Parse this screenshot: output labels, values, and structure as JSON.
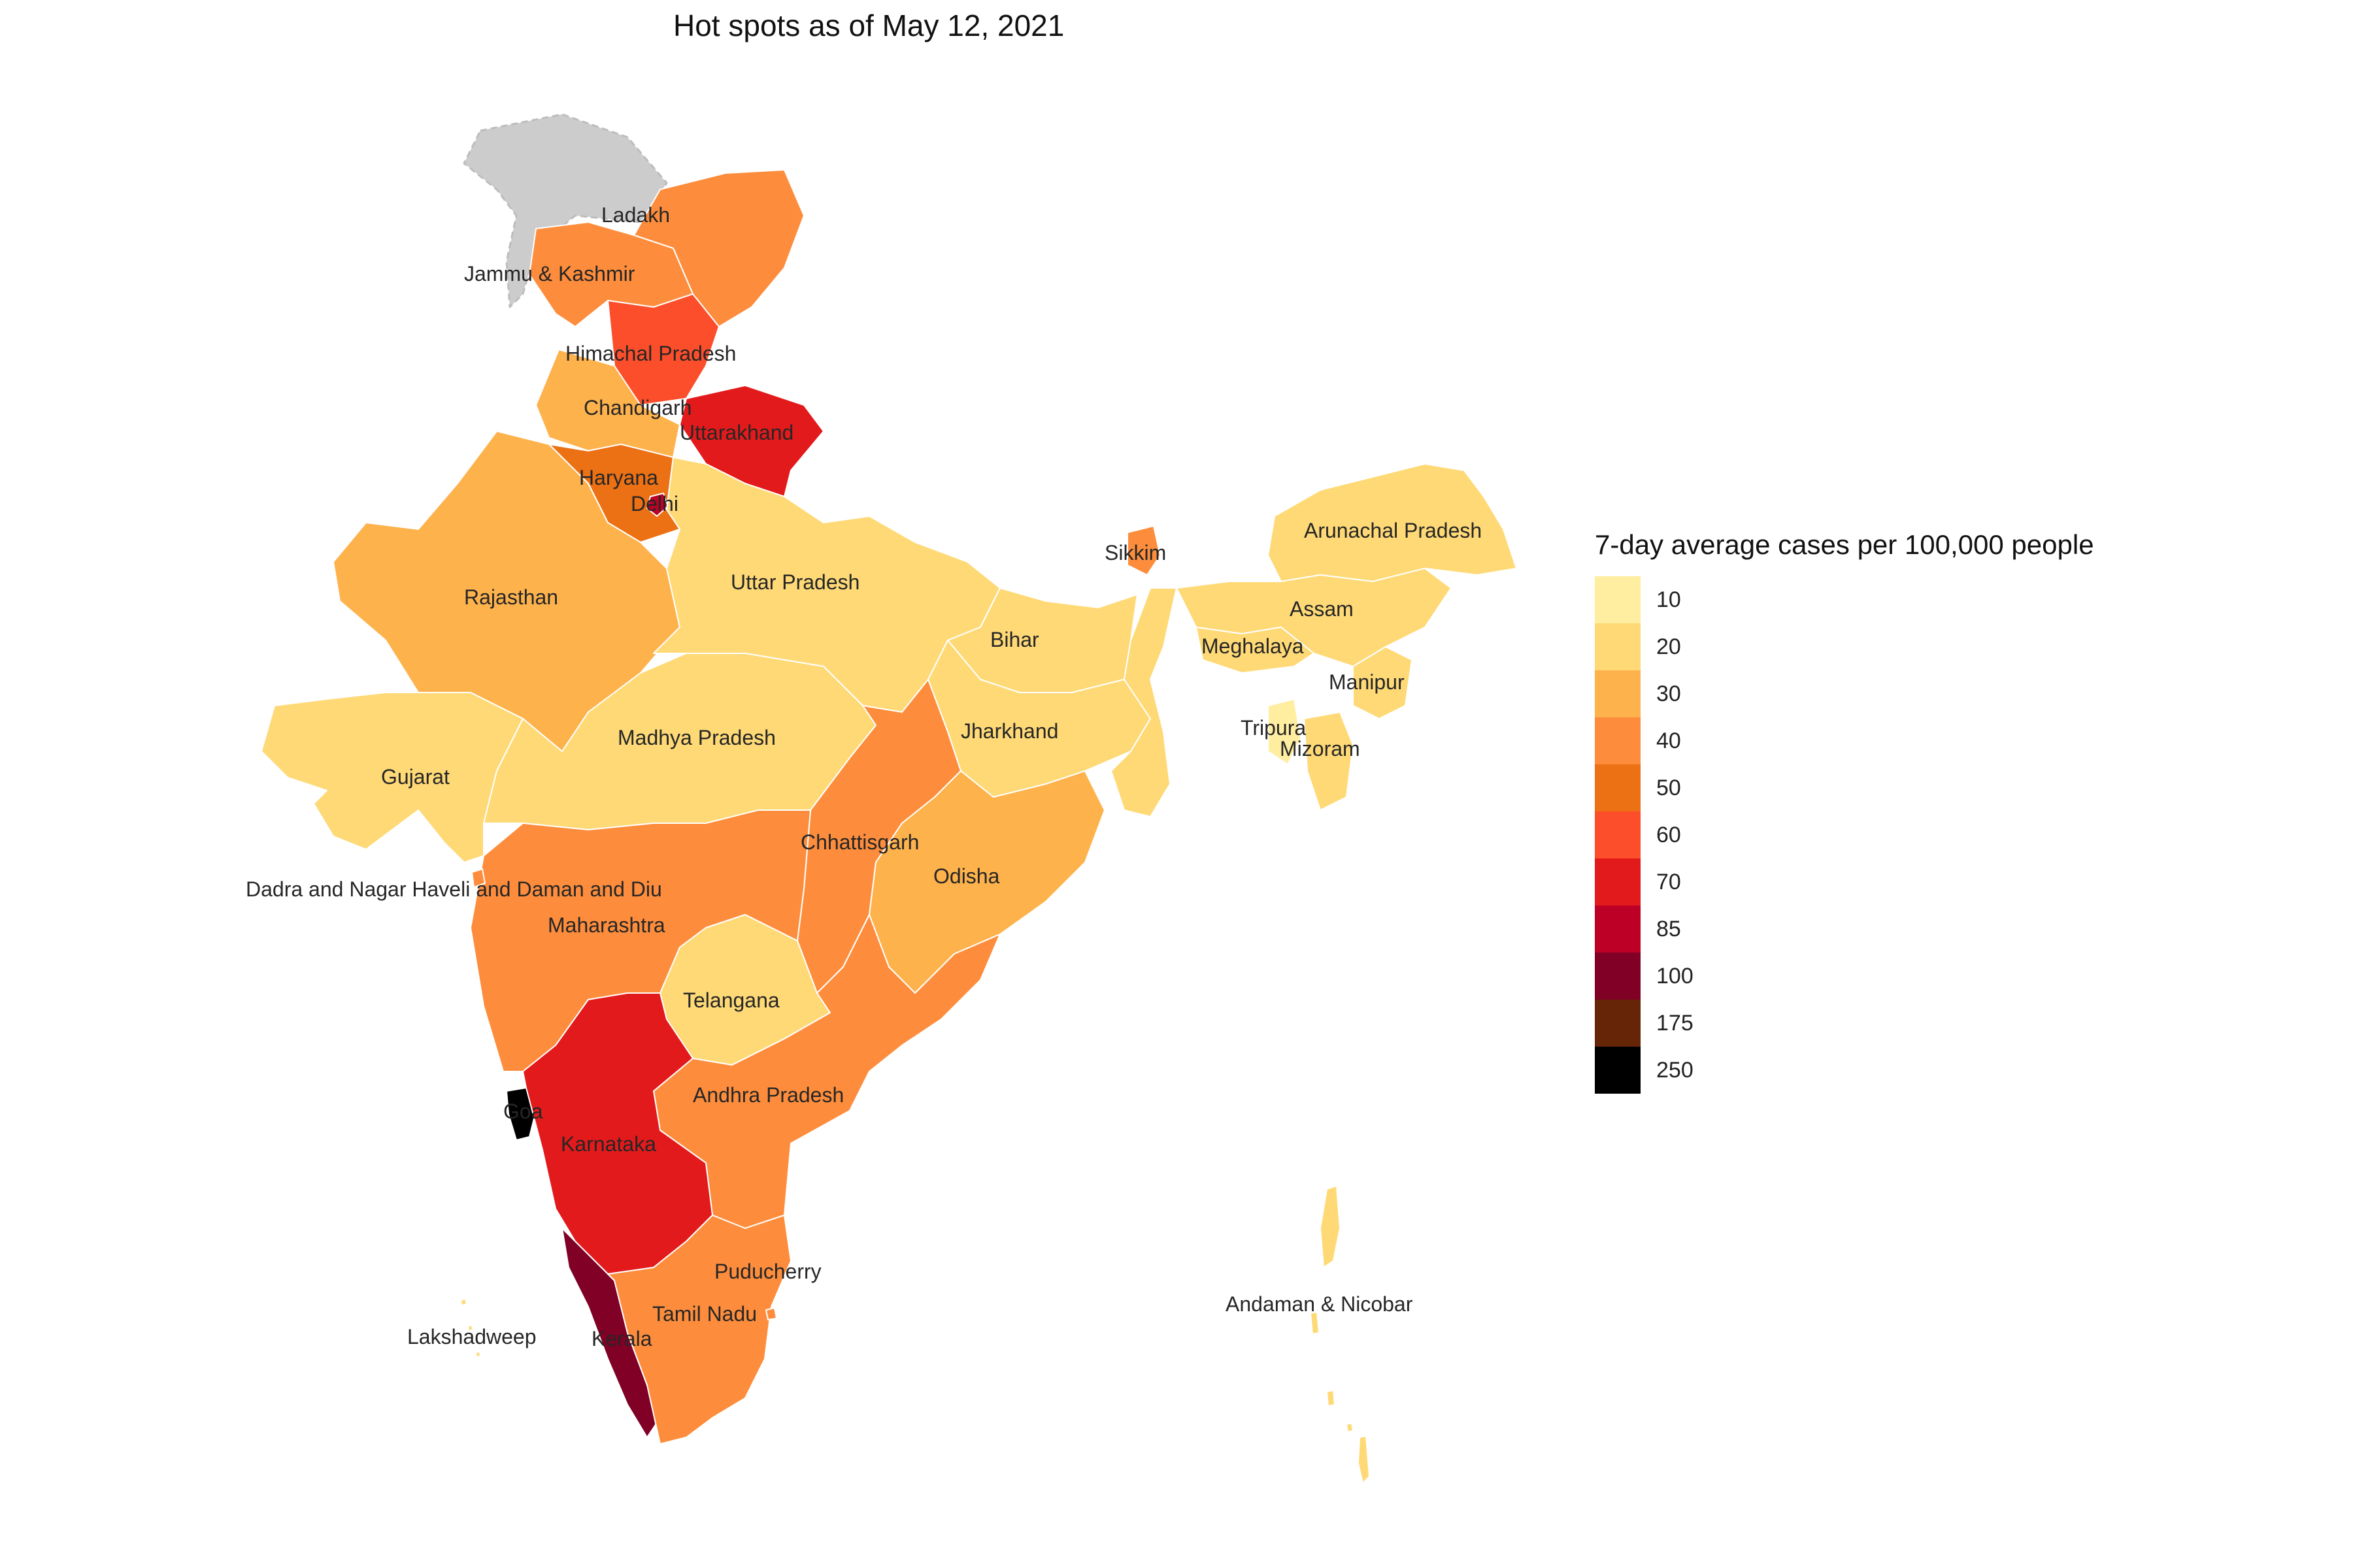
{
  "title": "Hot spots as of May 12, 2021",
  "legend": {
    "title": "7-day average cases per 100,000 people",
    "bins": [
      {
        "label": "10",
        "color": "#ffeda0"
      },
      {
        "label": "20",
        "color": "#fed976"
      },
      {
        "label": "30",
        "color": "#feb24c"
      },
      {
        "label": "40",
        "color": "#fd8d3c"
      },
      {
        "label": "50",
        "color": "#ec7014"
      },
      {
        "label": "60",
        "color": "#fc4e2a"
      },
      {
        "label": "70",
        "color": "#e31a1c"
      },
      {
        "label": "85",
        "color": "#bd0026"
      },
      {
        "label": "100",
        "color": "#800026"
      },
      {
        "label": "175",
        "color": "#662506"
      },
      {
        "label": "250",
        "color": "#000000"
      }
    ]
  },
  "regions": [
    {
      "name": "Ladakh",
      "bin": "40"
    },
    {
      "name": "Jammu & Kashmir",
      "bin": "40"
    },
    {
      "name": "Himachal Pradesh",
      "bin": "60"
    },
    {
      "name": "Chandigarh",
      "bin": "30"
    },
    {
      "name": "Uttarakhand",
      "bin": "70"
    },
    {
      "name": "Haryana",
      "bin": "50"
    },
    {
      "name": "Delhi",
      "bin": "85"
    },
    {
      "name": "Rajasthan",
      "bin": "30"
    },
    {
      "name": "Uttar Pradesh",
      "bin": "20"
    },
    {
      "name": "Bihar",
      "bin": "20"
    },
    {
      "name": "Sikkim",
      "bin": "40"
    },
    {
      "name": "Arunachal Pradesh",
      "bin": "20"
    },
    {
      "name": "Assam",
      "bin": "20"
    },
    {
      "name": "Meghalaya",
      "bin": "20"
    },
    {
      "name": "Manipur",
      "bin": "20"
    },
    {
      "name": "Tripura",
      "bin": "10"
    },
    {
      "name": "Mizoram",
      "bin": "20"
    },
    {
      "name": "Gujarat",
      "bin": "20"
    },
    {
      "name": "Madhya Pradesh",
      "bin": "20"
    },
    {
      "name": "Jharkhand",
      "bin": "20"
    },
    {
      "name": "Chhattisgarh",
      "bin": "40"
    },
    {
      "name": "Odisha",
      "bin": "30"
    },
    {
      "name": "Dadra and Nagar Haveli and Daman and Diu",
      "bin": "40"
    },
    {
      "name": "Maharashtra",
      "bin": "40"
    },
    {
      "name": "Telangana",
      "bin": "20"
    },
    {
      "name": "Andhra Pradesh",
      "bin": "40"
    },
    {
      "name": "Goa",
      "bin": "250"
    },
    {
      "name": "Karnataka",
      "bin": "70"
    },
    {
      "name": "Puducherry",
      "bin": "40"
    },
    {
      "name": "Tamil Nadu",
      "bin": "40"
    },
    {
      "name": "Kerala",
      "bin": "100"
    },
    {
      "name": "Lakshadweep",
      "bin": "20"
    },
    {
      "name": "Andaman & Nicobar",
      "bin": "20"
    }
  ]
}
